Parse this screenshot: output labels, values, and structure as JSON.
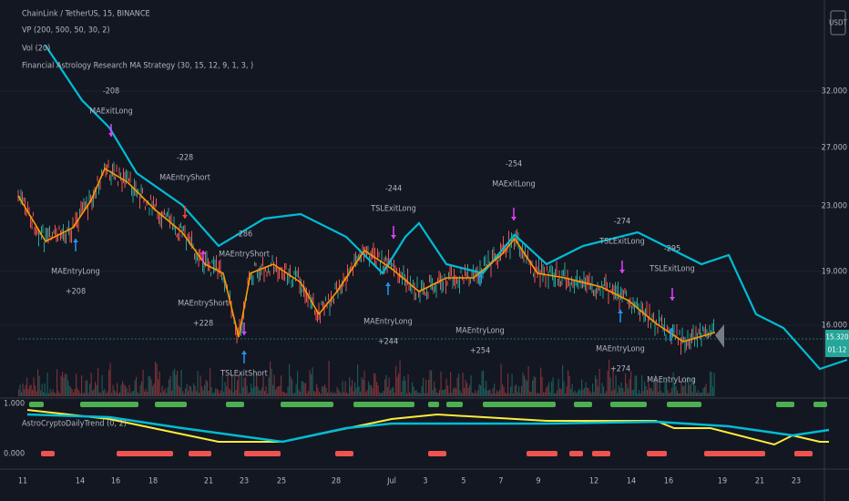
{
  "header": {
    "symbol": "ChainLink / TetherUS, 15, BINANCE",
    "indicators": [
      "VP (200, 500, 50, 30, 2)",
      "Vol (20)",
      "Financial Astrology Research MA Strategy (30, 15, 12, 9, 1, 3, )"
    ],
    "currency": "USDT"
  },
  "price_axis": [
    "32.000",
    "27.000",
    "23.000",
    "19.000",
    "16.000"
  ],
  "price_badges": {
    "last": "15.320",
    "timer": "01:12"
  },
  "lower_pane": {
    "title": "AstroCryptoDailyTrend (0, 2)",
    "ticks": [
      "1.000",
      "0.000"
    ]
  },
  "date_axis": [
    "11",
    "14",
    "16",
    "18",
    "21",
    "23",
    "25",
    "28",
    "Jul",
    "3",
    "5",
    "7",
    "9",
    "12",
    "14",
    "16",
    "19",
    "21",
    "23"
  ],
  "annotations": [
    [
      "-208",
      "MAExitLong"
    ],
    [
      "-228",
      "MAEntryShort"
    ],
    [
      "-286",
      "MAEntryShort"
    ],
    [
      "-244",
      "TSLExitLong"
    ],
    [
      "-254",
      "MAExitLong"
    ],
    [
      "-274",
      "TSLExitLong"
    ],
    [
      "-295",
      "TSLExitLong"
    ],
    [
      "MAEntryLong",
      "+208"
    ],
    [
      "MAEntryShort",
      "+228"
    ],
    [
      "TSLExitShort"
    ],
    [
      "MAEntryLong",
      "+244"
    ],
    [
      "MAEntryLong",
      "+254"
    ],
    [
      "MAEntryLong",
      "+274"
    ],
    [
      "MAEntryLong"
    ]
  ]
}
